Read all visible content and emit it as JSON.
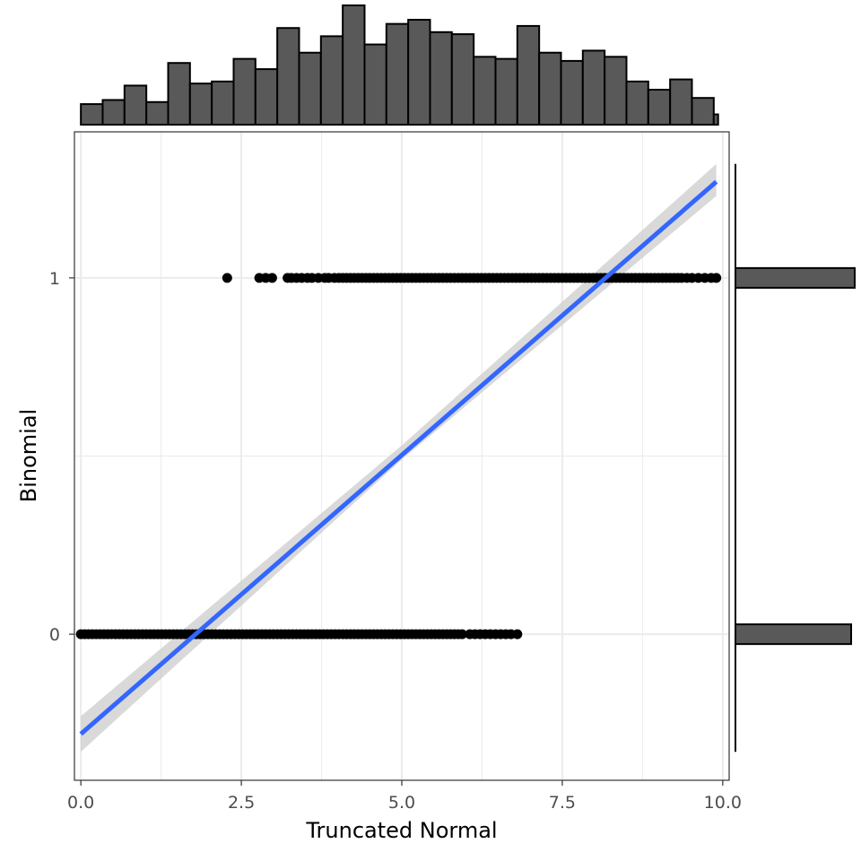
{
  "chart_data": {
    "type": "scatter",
    "title": "",
    "xlabel": "Truncated Normal",
    "ylabel": "Binomial",
    "xlim": [
      -0.1,
      10.1
    ],
    "ylim": [
      -0.41,
      1.41
    ],
    "x_ticks": [
      0,
      2.5,
      5,
      7.5,
      10
    ],
    "x_tick_labels": [
      "0.0",
      "2.5",
      "5.0",
      "7.5",
      "10.0"
    ],
    "y_ticks": [
      0,
      1
    ],
    "y_tick_labels": [
      "0",
      "1"
    ],
    "grid": true,
    "legend": "none",
    "colors": {
      "points": "#000000",
      "fit_line": "#3366FF",
      "ci_band": "#cccccc",
      "hist_fill": "#595959",
      "hist_edge": "#000000",
      "panel_border": "#333333",
      "grid": "#ebebeb"
    },
    "points_y1": [
      2.28,
      2.78,
      2.88,
      2.98,
      3.22,
      3.28,
      3.36,
      3.44,
      3.53,
      3.6,
      3.7,
      3.8,
      3.86,
      3.95,
      4.02,
      4.08,
      4.14,
      4.2,
      4.26,
      4.32,
      4.38,
      4.44,
      4.5,
      4.56,
      4.62,
      4.68,
      4.74,
      4.8,
      4.86,
      4.92,
      4.98,
      5.04,
      5.1,
      5.16,
      5.22,
      5.28,
      5.34,
      5.4,
      5.46,
      5.52,
      5.58,
      5.64,
      5.7,
      5.76,
      5.82,
      5.88,
      5.94,
      6.0,
      6.06,
      6.12,
      6.18,
      6.24,
      6.3,
      6.36,
      6.42,
      6.48,
      6.54,
      6.6,
      6.66,
      6.72,
      6.78,
      6.84,
      6.9,
      6.96,
      7.02,
      7.08,
      7.14,
      7.2,
      7.26,
      7.32,
      7.38,
      7.44,
      7.5,
      7.56,
      7.62,
      7.68,
      7.74,
      7.8,
      7.86,
      7.92,
      7.98,
      8.04,
      8.1,
      8.16,
      8.22,
      8.28,
      8.34,
      8.4,
      8.46,
      8.52,
      8.58,
      8.64,
      8.7,
      8.76,
      8.82,
      8.88,
      8.94,
      9.0,
      9.06,
      9.12,
      9.18,
      9.24,
      9.3,
      9.36,
      9.44,
      9.52,
      9.62,
      9.72,
      9.82,
      9.9
    ],
    "points_y0": [
      0.0,
      0.06,
      0.12,
      0.18,
      0.24,
      0.3,
      0.36,
      0.42,
      0.48,
      0.54,
      0.6,
      0.66,
      0.72,
      0.78,
      0.84,
      0.9,
      0.96,
      1.02,
      1.08,
      1.14,
      1.2,
      1.26,
      1.32,
      1.38,
      1.44,
      1.5,
      1.56,
      1.62,
      1.68,
      1.74,
      1.8,
      1.86,
      1.92,
      1.98,
      2.04,
      2.1,
      2.16,
      2.22,
      2.28,
      2.34,
      2.4,
      2.46,
      2.52,
      2.58,
      2.64,
      2.7,
      2.76,
      2.82,
      2.88,
      2.94,
      3.0,
      3.06,
      3.12,
      3.18,
      3.24,
      3.3,
      3.36,
      3.42,
      3.48,
      3.54,
      3.6,
      3.66,
      3.72,
      3.78,
      3.84,
      3.9,
      3.96,
      4.02,
      4.08,
      4.14,
      4.2,
      4.26,
      4.32,
      4.38,
      4.44,
      4.5,
      4.56,
      4.62,
      4.68,
      4.74,
      4.8,
      4.86,
      4.92,
      4.98,
      5.04,
      5.1,
      5.16,
      5.22,
      5.28,
      5.34,
      5.4,
      5.46,
      5.52,
      5.58,
      5.64,
      5.7,
      5.76,
      5.82,
      5.88,
      5.94,
      6.06,
      6.14,
      6.22,
      6.3,
      6.38,
      6.46,
      6.54,
      6.62,
      6.7,
      6.8
    ],
    "fit_line": {
      "x": [
        0.0,
        9.9
      ],
      "y": [
        -0.28,
        1.27
      ]
    },
    "ci_band": {
      "x": [
        0.0,
        5.0,
        9.9
      ],
      "lower": [
        -0.33,
        0.49,
        1.23
      ],
      "upper": [
        -0.23,
        0.53,
        1.32
      ]
    },
    "x_histogram": {
      "bin_start": 0.0,
      "bin_width": 0.34,
      "counts": [
        10,
        12,
        19,
        11,
        30,
        20,
        21,
        32,
        27,
        47,
        35,
        43,
        58,
        39,
        49,
        51,
        45,
        44,
        33,
        32,
        48,
        35,
        31,
        36,
        33,
        21,
        17,
        22,
        13,
        5
      ]
    },
    "y_histogram": {
      "bins": [
        {
          "value": 1,
          "count": 1000
        },
        {
          "value": 0,
          "count": 970
        }
      ]
    }
  }
}
